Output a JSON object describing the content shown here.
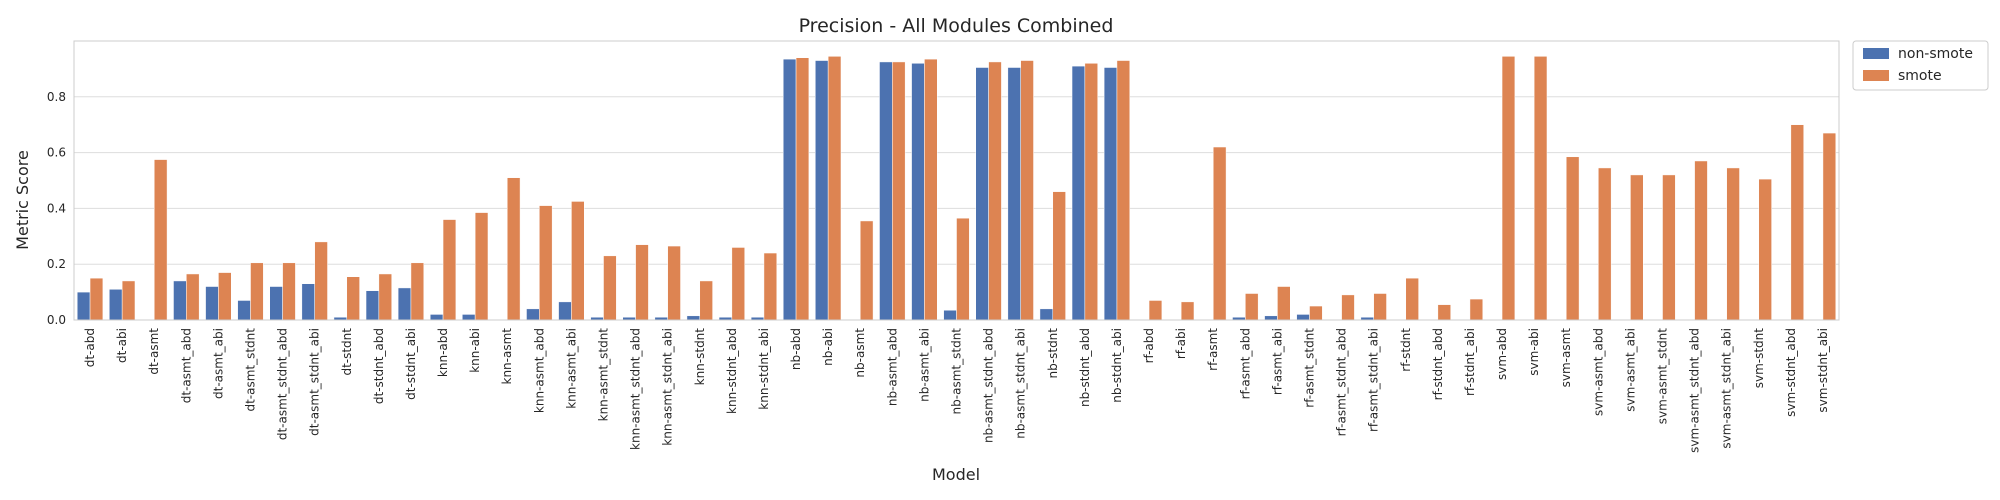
{
  "chart_data": {
    "type": "bar",
    "title": "Precision - All Modules Combined",
    "xlabel": "Model",
    "ylabel": "Metric Score",
    "ylim": [
      0,
      1.0
    ],
    "yticks": [
      "0.0",
      "0.2",
      "0.4",
      "0.6",
      "0.8"
    ],
    "grid": "horizontal",
    "legend_position": "outside-top-right",
    "categories": [
      "dt-abd",
      "dt-abi",
      "dt-asmt",
      "dt-asmt_abd",
      "dt-asmt_abi",
      "dt-asmt_stdnt",
      "dt-asmt_stdnt_abd",
      "dt-asmt_stdnt_abi",
      "dt-stdnt",
      "dt-stdnt_abd",
      "dt-stdnt_abi",
      "knn-abd",
      "knn-abi",
      "knn-asmt",
      "knn-asmt_abd",
      "knn-asmt_abi",
      "knn-asmt_stdnt",
      "knn-asmt_stdnt_abd",
      "knn-asmt_stdnt_abi",
      "knn-stdnt",
      "knn-stdnt_abd",
      "knn-stdnt_abi",
      "nb-abd",
      "nb-abi",
      "nb-asmt",
      "nb-asmt_abd",
      "nb-asmt_abi",
      "nb-asmt_stdnt",
      "nb-asmt_stdnt_abd",
      "nb-asmt_stdnt_abi",
      "nb-stdnt",
      "nb-stdnt_abd",
      "nb-stdnt_abi",
      "rf-abd",
      "rf-abi",
      "rf-asmt",
      "rf-asmt_abd",
      "rf-asmt_abi",
      "rf-asmt_stdnt",
      "rf-asmt_stdnt_abd",
      "rf-asmt_stdnt_abi",
      "rf-stdnt",
      "rf-stdnt_abd",
      "rf-stdnt_abi",
      "svm-abd",
      "svm-abi",
      "svm-asmt",
      "svm-asmt_abd",
      "svm-asmt_abi",
      "svm-asmt_stdnt",
      "svm-asmt_stdnt_abd",
      "svm-asmt_stdnt_abi",
      "svm-stdnt",
      "svm-stdnt_abd",
      "svm-stdnt_abi"
    ],
    "series": [
      {
        "name": "non-smote",
        "color": "#4c72b0",
        "values": [
          0.1,
          0.11,
          0.0,
          0.14,
          0.12,
          0.07,
          0.12,
          0.13,
          0.01,
          0.105,
          0.115,
          0.02,
          0.02,
          0.0,
          0.04,
          0.065,
          0.01,
          0.01,
          0.01,
          0.015,
          0.01,
          0.01,
          0.935,
          0.93,
          0.0,
          0.925,
          0.92,
          0.035,
          0.905,
          0.905,
          0.04,
          0.91,
          0.905,
          0.0,
          0.0,
          0.0,
          0.01,
          0.015,
          0.02,
          0.0,
          0.01,
          0.0,
          0.0,
          0.0,
          0.0,
          0.0,
          0.0,
          0.0,
          0.0,
          0.0,
          0.0,
          0.0,
          0.0,
          0.0,
          0.0
        ]
      },
      {
        "name": "smote",
        "color": "#dd8452",
        "values": [
          0.15,
          0.14,
          0.575,
          0.165,
          0.17,
          0.205,
          0.205,
          0.28,
          0.155,
          0.165,
          0.205,
          0.36,
          0.385,
          0.51,
          0.41,
          0.425,
          0.23,
          0.27,
          0.265,
          0.14,
          0.26,
          0.24,
          0.94,
          0.945,
          0.355,
          0.925,
          0.935,
          0.365,
          0.925,
          0.93,
          0.46,
          0.92,
          0.93,
          0.07,
          0.065,
          0.62,
          0.095,
          0.12,
          0.05,
          0.09,
          0.095,
          0.15,
          0.055,
          0.075,
          0.945,
          0.945,
          0.585,
          0.545,
          0.52,
          0.52,
          0.57,
          0.545,
          0.505,
          0.7,
          0.67
        ]
      }
    ]
  }
}
